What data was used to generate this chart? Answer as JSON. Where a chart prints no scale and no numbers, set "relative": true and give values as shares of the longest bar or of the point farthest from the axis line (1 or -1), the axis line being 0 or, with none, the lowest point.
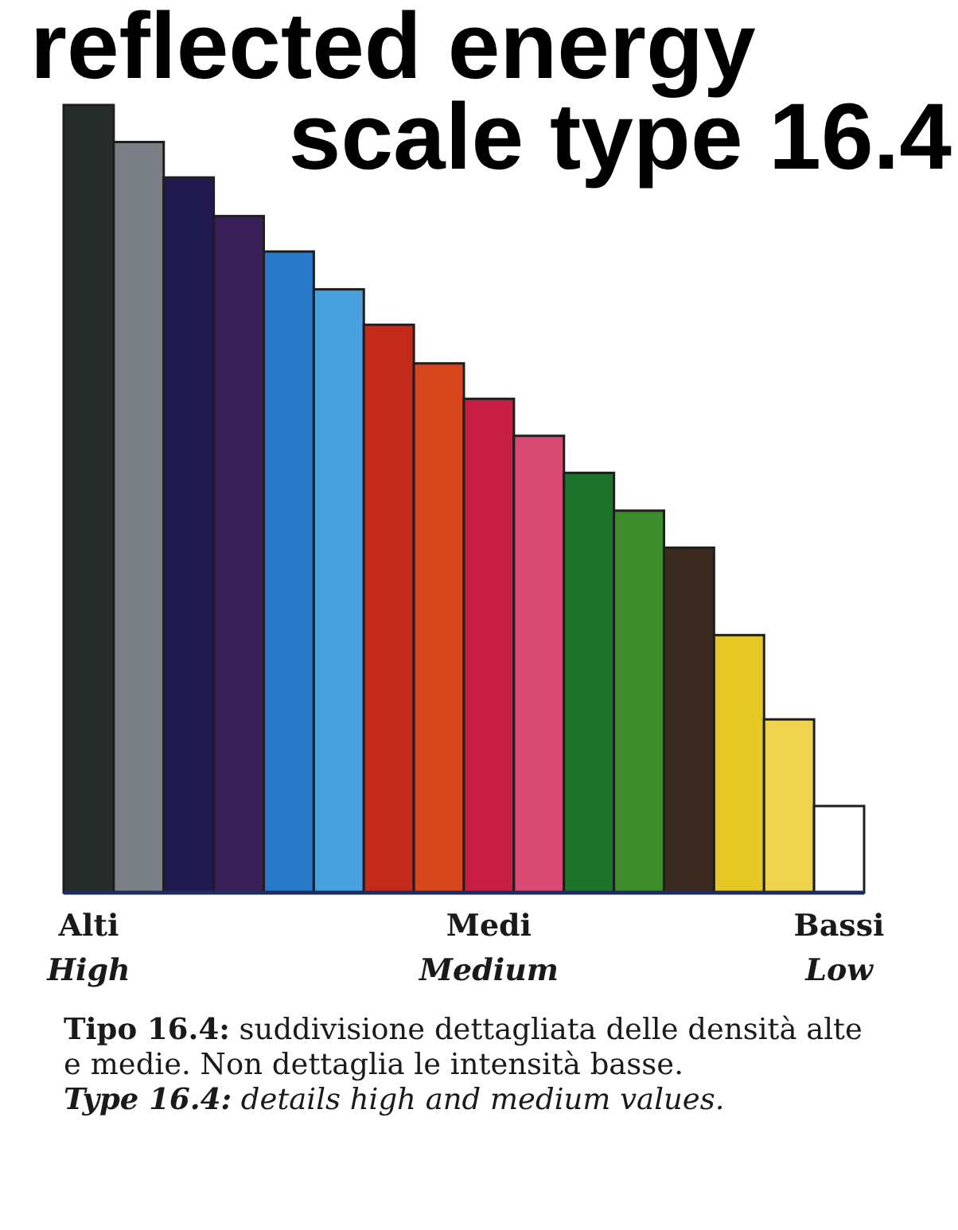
{
  "chart_data": {
    "type": "bar",
    "title": "reflected energy",
    "subtitle": "scale type 16.4",
    "categories": [
      "Alti\nHigh",
      null,
      null,
      null,
      null,
      null,
      null,
      null,
      "Medi\nMedium",
      null,
      null,
      null,
      null,
      null,
      null,
      "Bassi\nLow"
    ],
    "values": [
      1,
      0.953,
      0.908,
      0.859,
      0.814,
      0.766,
      0.721,
      0.672,
      0.627,
      0.58,
      0.533,
      0.485,
      0.438,
      0.327,
      0.22,
      0.11
    ],
    "colors": [
      "#262c2a",
      "#7b8086",
      "#201a50",
      "#3a2058",
      "#2878c8",
      "#48a0dc",
      "#c42a1c",
      "#d8461e",
      "#c81e44",
      "#d84a72",
      "#1e742a",
      "#3e8c2c",
      "#3a2a20",
      "#e6c824",
      "#eed44e",
      "#ffffff"
    ],
    "relative": true,
    "annotations": [
      "Tipo 16.4: suddivisione dettagliata delle densità alte e medie. Non dettaglia le intensità basse.",
      "Type 16.4: details high and medium values."
    ]
  }
}
